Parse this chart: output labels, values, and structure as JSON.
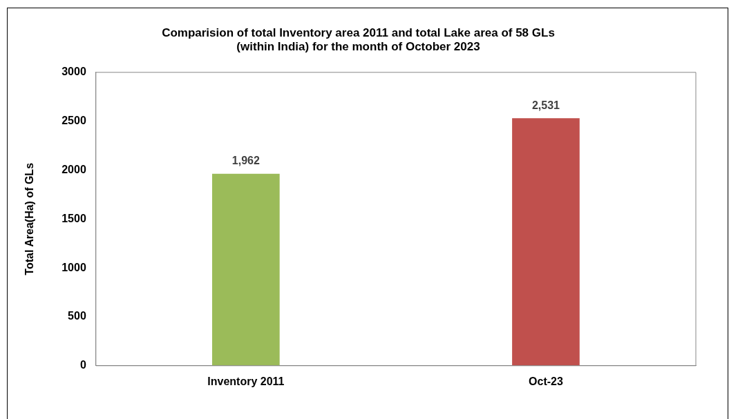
{
  "chart_data": {
    "type": "bar",
    "title": "Comparision of total Inventory area 2011 and total Lake area of 58 GLs (within India) for the month of October 2023",
    "ylabel": "Total Area(Ha) of GLs",
    "categories": [
      "Inventory 2011",
      "Oct-23"
    ],
    "values": [
      1962,
      2531
    ],
    "colors": [
      "#9bbb59",
      "#c0504d"
    ],
    "value_labels": [
      "1,962",
      "2,531"
    ],
    "ylim": [
      0,
      3000
    ],
    "yticks": [
      0,
      500,
      1000,
      1500,
      2000,
      2500,
      3000
    ],
    "grid": false,
    "legend": false
  }
}
